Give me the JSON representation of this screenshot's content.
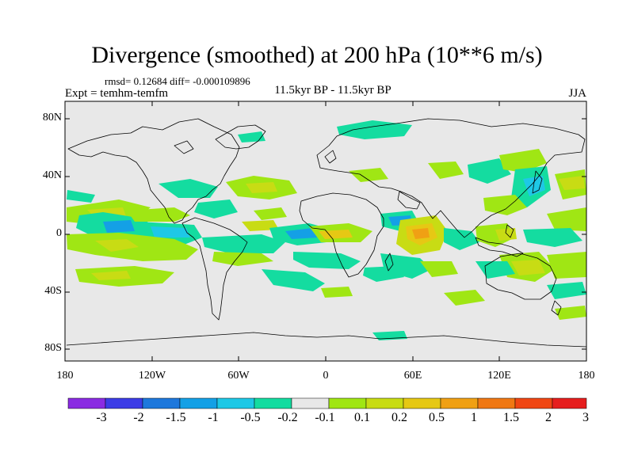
{
  "title": "Divergence (smoothed) at 200 hPa (10**6 m/s)",
  "stats": "rmsd= 0.12684 diff= -0.000109896",
  "experiment": "Expt = temhm-temfm",
  "period": "11.5kyr BP - 11.5kyr BP",
  "season": "JJA",
  "colors": {
    "background": "#e8e8e8",
    "land_outline": "#000000"
  },
  "lat_ticks": [
    "80N",
    "40N",
    "0",
    "40S",
    "80S"
  ],
  "lon_ticks": [
    "180",
    "120W",
    "60W",
    "0",
    "60E",
    "120E",
    "180"
  ],
  "colorbar": {
    "colors": [
      "#8a2be2",
      "#3c3ce6",
      "#1e78dc",
      "#14a0e6",
      "#1ec8e6",
      "#14dca0",
      "#e8e8e8",
      "#a0e614",
      "#c8dc14",
      "#e6c814",
      "#f0a014",
      "#f07814",
      "#f04614",
      "#e61e1e"
    ],
    "labels": [
      "-3",
      "-2",
      "-1.5",
      "-1",
      "-0.5",
      "-0.2",
      "-0.1",
      "0.1",
      "0.2",
      "0.5",
      "1",
      "1.5",
      "2",
      "3"
    ]
  }
}
